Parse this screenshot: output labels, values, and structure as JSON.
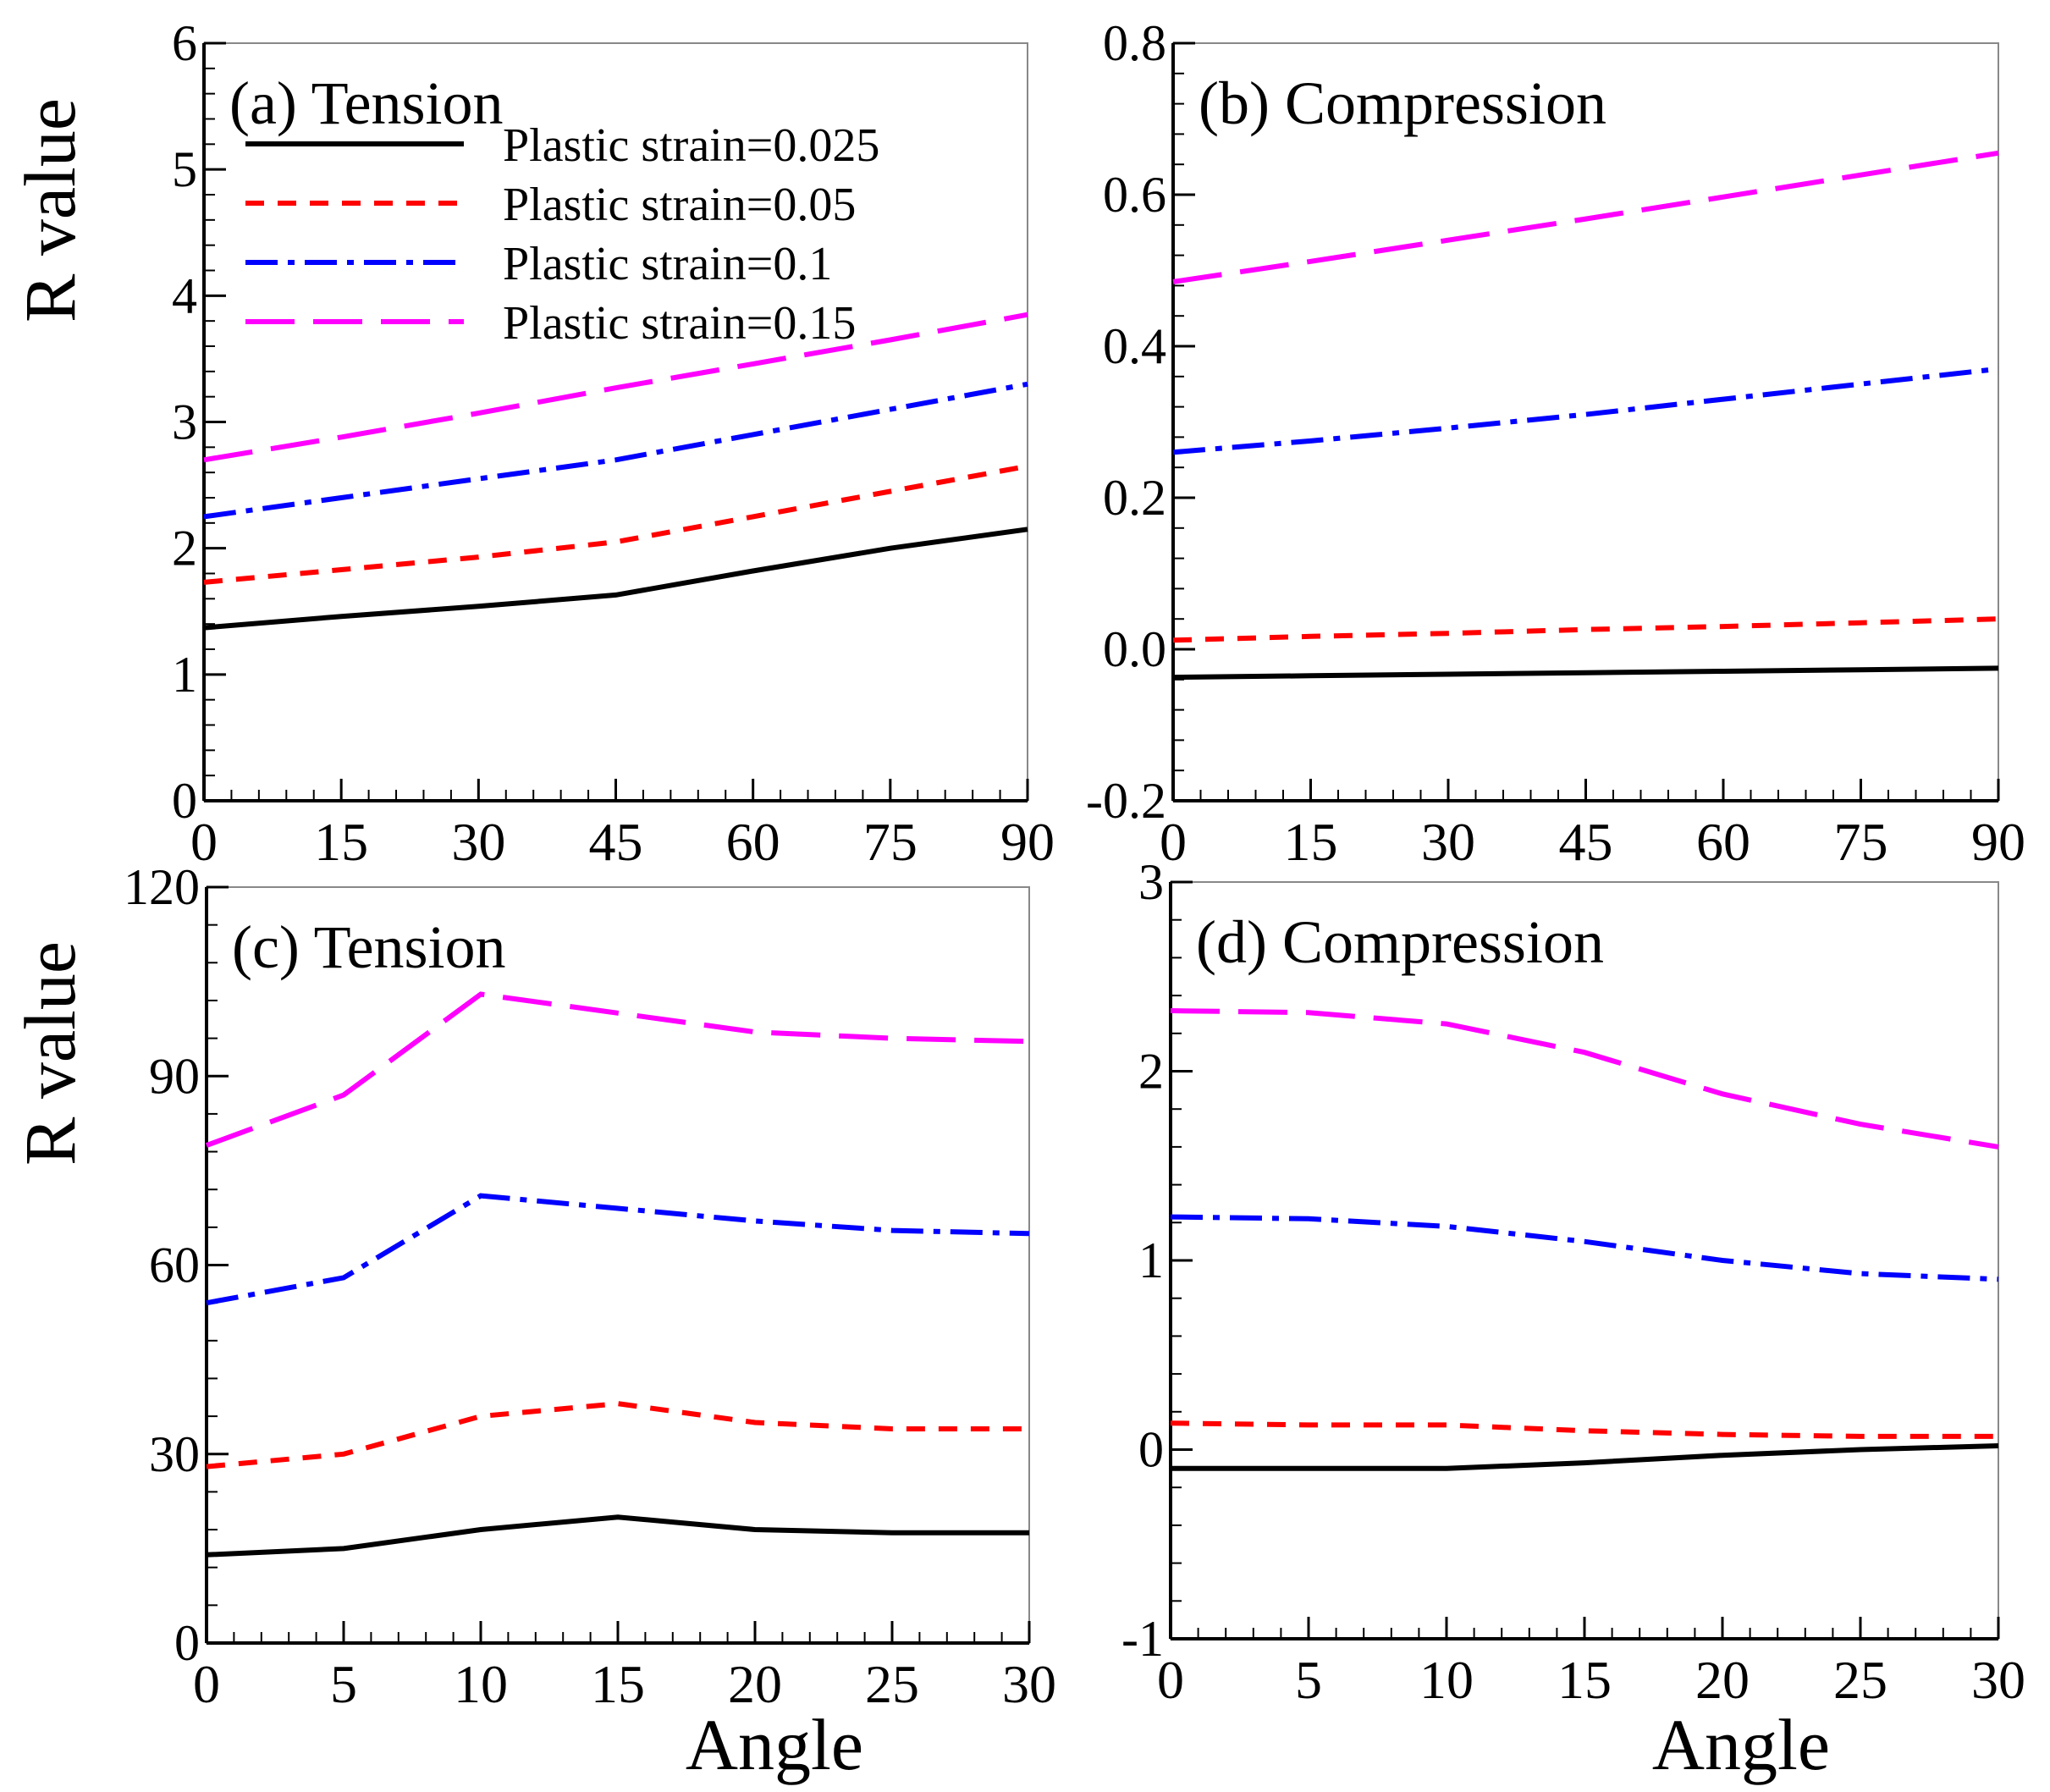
{
  "chart_data": [
    {
      "type": "line",
      "title": "(a) Tension",
      "xlabel": "",
      "ylabel": "R value",
      "xlim": [
        0,
        90
      ],
      "ylim": [
        0,
        6
      ],
      "xticks": [
        "0",
        "15",
        "30",
        "45",
        "60",
        "75",
        "90"
      ],
      "yticks": [
        "0",
        "1",
        "2",
        "3",
        "4",
        "5",
        "6"
      ],
      "x": [
        0,
        15,
        30,
        45,
        60,
        75,
        90
      ],
      "legend_position": "top-left",
      "series": [
        {
          "name": "Plastic strain=0.025",
          "color": "#000000",
          "style": "solid",
          "values": [
            1.37,
            1.46,
            1.54,
            1.63,
            1.82,
            2.0,
            2.15
          ]
        },
        {
          "name": "Plastic strain=0.05",
          "color": "#ff0000",
          "style": "dash",
          "values": [
            1.73,
            1.83,
            1.93,
            2.05,
            2.25,
            2.45,
            2.65
          ]
        },
        {
          "name": "Plastic strain=0.1",
          "color": "#0000ff",
          "style": "dashdot",
          "values": [
            2.25,
            2.4,
            2.55,
            2.7,
            2.9,
            3.1,
            3.3
          ]
        },
        {
          "name": "Plastic strain=0.15",
          "color": "#ff00ff",
          "style": "longdash",
          "values": [
            2.7,
            2.88,
            3.07,
            3.27,
            3.46,
            3.65,
            3.85
          ]
        }
      ]
    },
    {
      "type": "line",
      "title": "(b) Compression",
      "xlabel": "",
      "ylabel": "",
      "xlim": [
        0,
        90
      ],
      "ylim": [
        -0.2,
        0.8
      ],
      "xticks": [
        "0",
        "15",
        "30",
        "45",
        "60",
        "75",
        "90"
      ],
      "yticks": [
        "-0.2",
        "0.0",
        "0.2",
        "0.4",
        "0.6",
        "0.8"
      ],
      "x": [
        0,
        15,
        30,
        45,
        60,
        75,
        90
      ],
      "series": [
        {
          "name": "Plastic strain=0.025",
          "color": "#000000",
          "style": "solid",
          "values": [
            -0.037,
            -0.035,
            -0.033,
            -0.031,
            -0.029,
            -0.027,
            -0.025
          ]
        },
        {
          "name": "Plastic strain=0.05",
          "color": "#ff0000",
          "style": "dash",
          "values": [
            0.012,
            0.017,
            0.021,
            0.026,
            0.03,
            0.035,
            0.04
          ]
        },
        {
          "name": "Plastic strain=0.1",
          "color": "#0000ff",
          "style": "dashdot",
          "values": [
            0.26,
            0.275,
            0.292,
            0.31,
            0.33,
            0.35,
            0.37
          ]
        },
        {
          "name": "Plastic strain=0.15",
          "color": "#ff00ff",
          "style": "longdash",
          "values": [
            0.485,
            0.512,
            0.54,
            0.568,
            0.597,
            0.626,
            0.655
          ]
        }
      ]
    },
    {
      "type": "line",
      "title": "(c) Tension",
      "xlabel": "Angle",
      "ylabel": "R value",
      "xlim": [
        0,
        30
      ],
      "ylim": [
        0,
        120
      ],
      "xticks": [
        "0",
        "5",
        "10",
        "15",
        "20",
        "25",
        "30"
      ],
      "yticks": [
        "0",
        "30",
        "60",
        "90",
        "120"
      ],
      "x": [
        0,
        5,
        10,
        15,
        20,
        25,
        30
      ],
      "series": [
        {
          "name": "Plastic strain=0.025",
          "color": "#000000",
          "style": "solid",
          "values": [
            14,
            15,
            18,
            20,
            18,
            17.5,
            17.5
          ]
        },
        {
          "name": "Plastic strain=0.05",
          "color": "#ff0000",
          "style": "dash",
          "values": [
            28,
            30,
            36,
            38,
            35,
            34,
            34
          ]
        },
        {
          "name": "Plastic strain=0.1",
          "color": "#0000ff",
          "style": "dashdot",
          "values": [
            54,
            58,
            71,
            69,
            67,
            65.5,
            65
          ]
        },
        {
          "name": "Plastic strain=0.15",
          "color": "#ff00ff",
          "style": "longdash",
          "values": [
            79,
            87,
            103,
            100,
            97,
            96,
            95.5
          ]
        }
      ]
    },
    {
      "type": "line",
      "title": "(d) Compression",
      "xlabel": "Angle",
      "ylabel": "",
      "xlim": [
        0,
        30
      ],
      "ylim": [
        -1,
        3
      ],
      "xticks": [
        "0",
        "5",
        "10",
        "15",
        "20",
        "25",
        "30"
      ],
      "yticks": [
        "-1",
        "0",
        "1",
        "2",
        "3"
      ],
      "x": [
        0,
        5,
        10,
        15,
        20,
        25,
        30
      ],
      "series": [
        {
          "name": "Plastic strain=0.025",
          "color": "#000000",
          "style": "solid",
          "values": [
            -0.1,
            -0.1,
            -0.1,
            -0.07,
            -0.03,
            0.0,
            0.02
          ]
        },
        {
          "name": "Plastic strain=0.05",
          "color": "#ff0000",
          "style": "dash",
          "values": [
            0.14,
            0.13,
            0.13,
            0.1,
            0.08,
            0.07,
            0.07
          ]
        },
        {
          "name": "Plastic strain=0.1",
          "color": "#0000ff",
          "style": "dashdot",
          "values": [
            1.23,
            1.22,
            1.18,
            1.1,
            1.0,
            0.93,
            0.9
          ]
        },
        {
          "name": "Plastic strain=0.15",
          "color": "#ff00ff",
          "style": "longdash",
          "values": [
            2.32,
            2.31,
            2.25,
            2.1,
            1.88,
            1.72,
            1.6
          ]
        }
      ]
    }
  ]
}
